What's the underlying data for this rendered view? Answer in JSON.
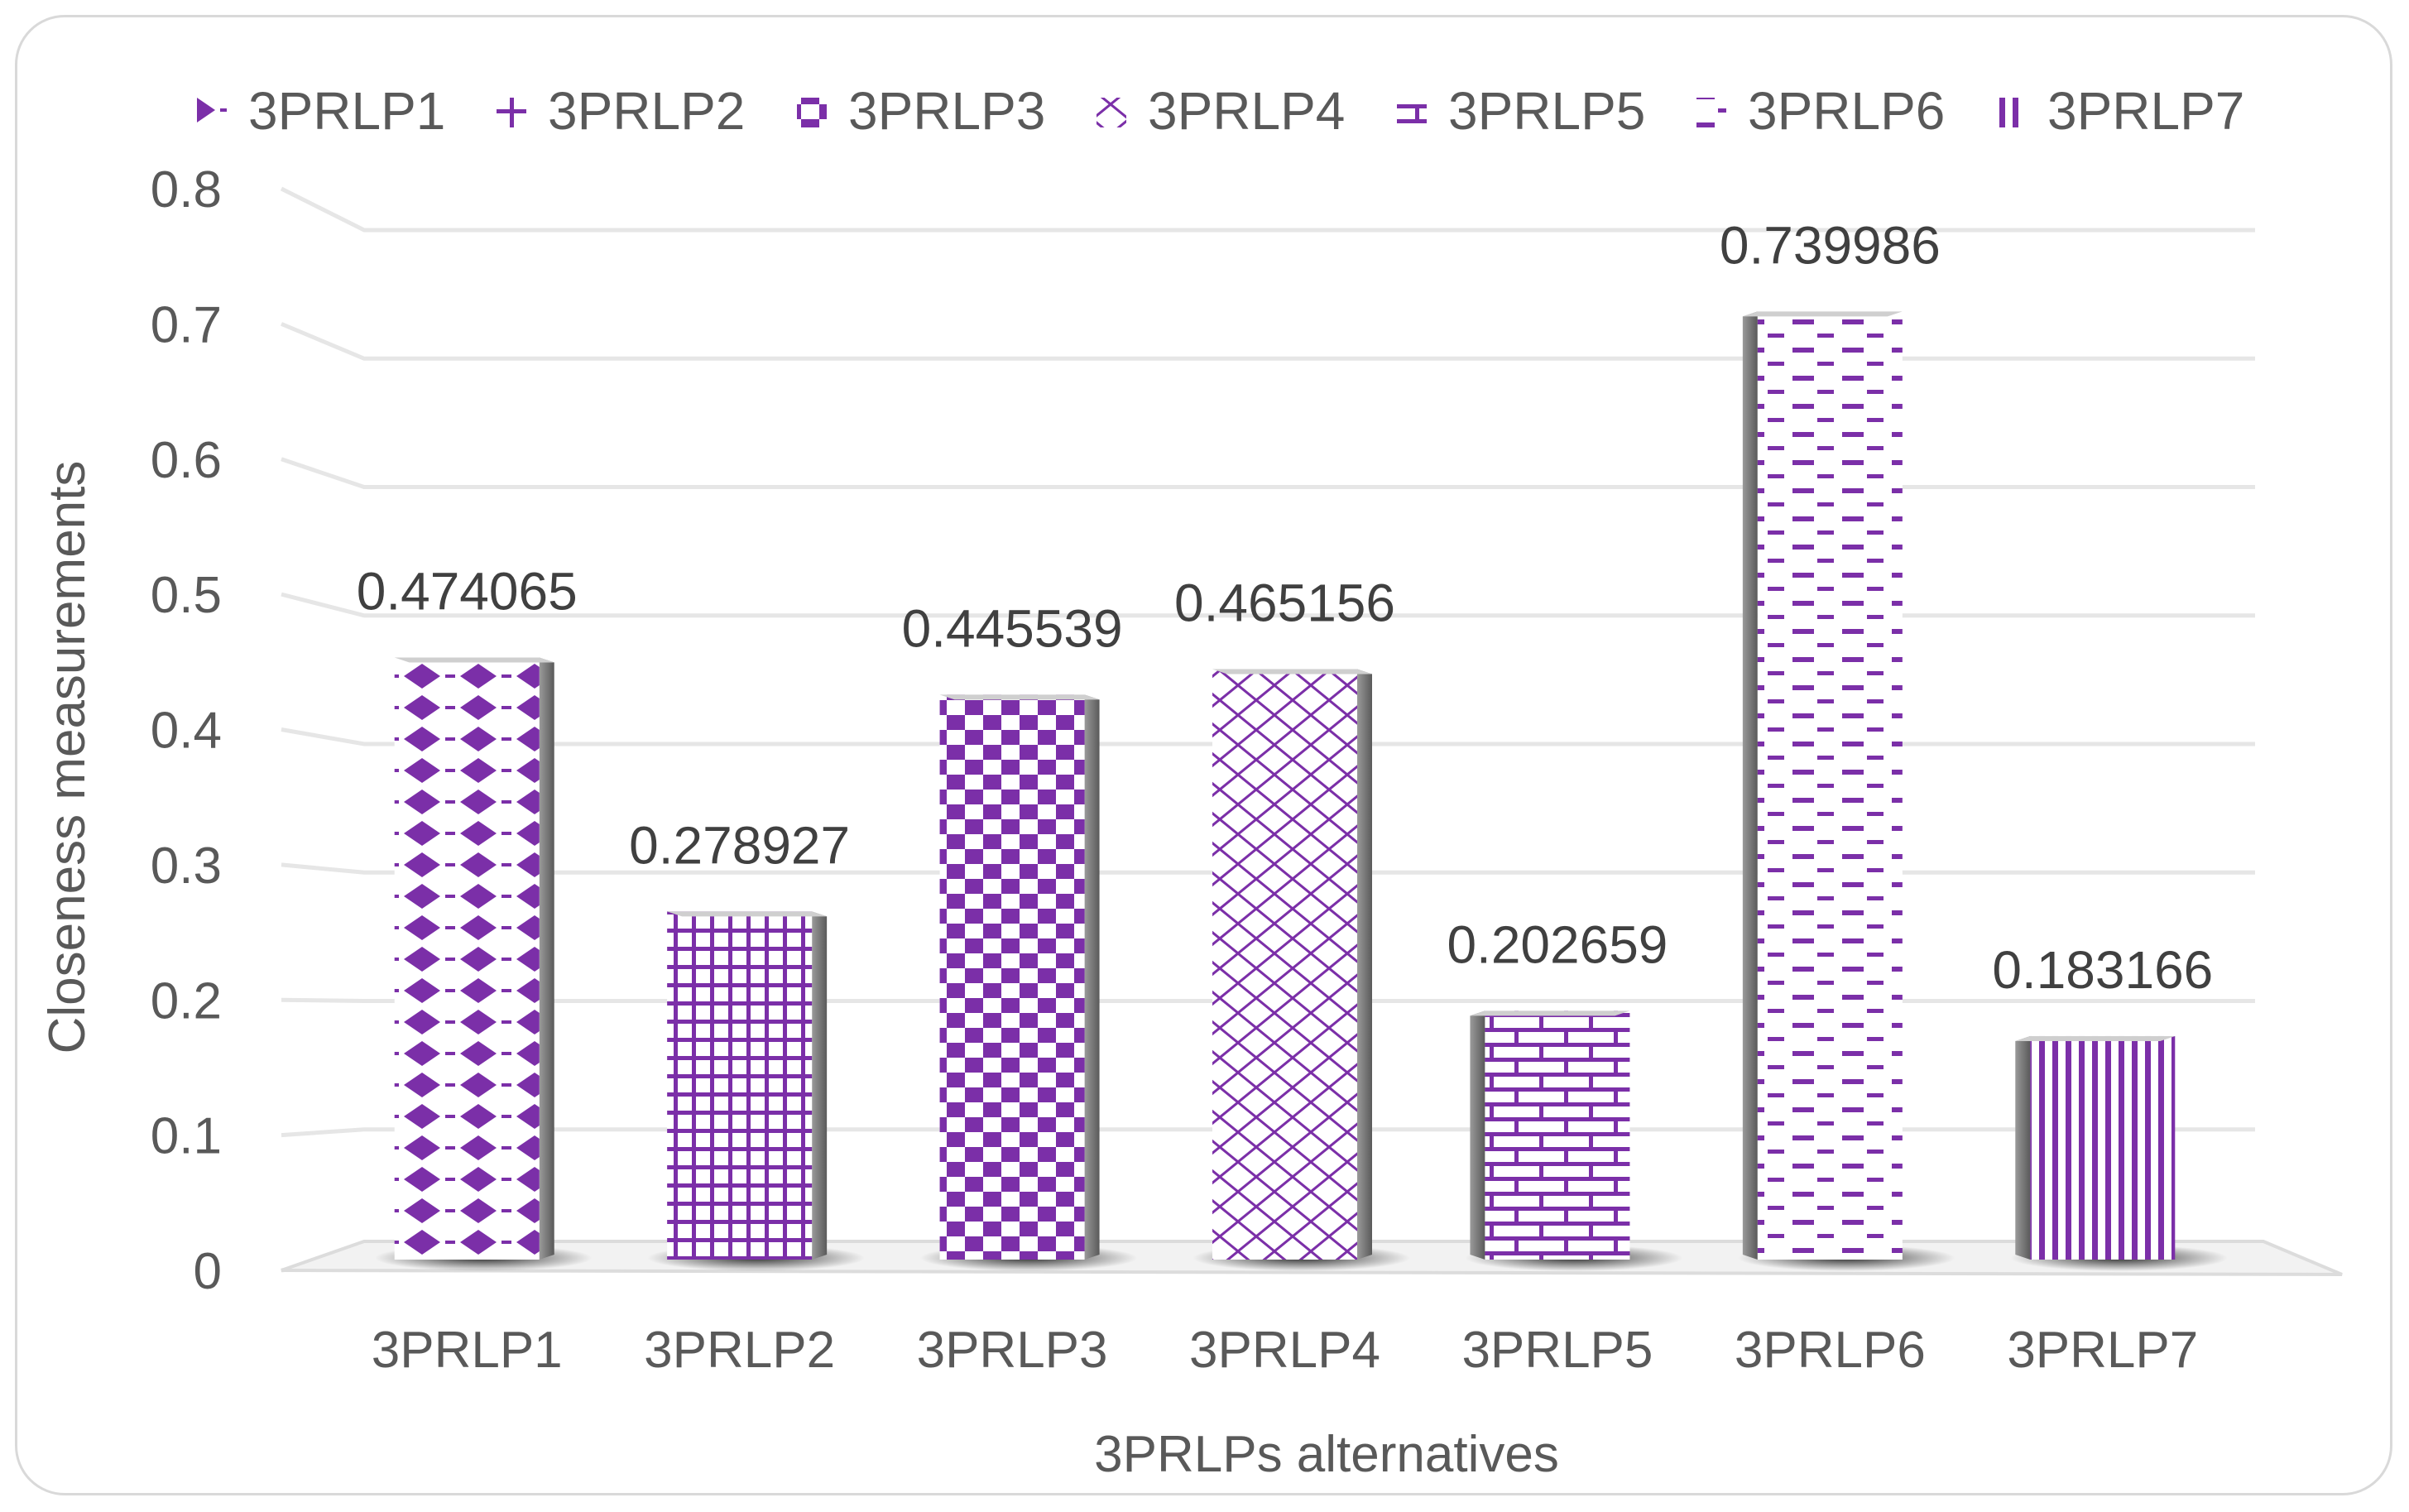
{
  "chart_data": {
    "type": "bar",
    "title": "",
    "xlabel": "3PRLPs alternatives",
    "ylabel": "Closeness measurements",
    "ylim": [
      0,
      0.8
    ],
    "yticks": [
      "0",
      "0.1",
      "0.2",
      "0.3",
      "0.4",
      "0.5",
      "0.6",
      "0.7",
      "0.8"
    ],
    "categories": [
      "3PRLP1",
      "3PRLP2",
      "3PRLP3",
      "3PRLP4",
      "3PRLP5",
      "3PRLP6",
      "3PRLP7"
    ],
    "values": [
      0.474065,
      0.278927,
      0.445539,
      0.465156,
      0.202659,
      0.739986,
      0.183166
    ],
    "data_labels": [
      "0.474065",
      "0.278927",
      "0.445539",
      "0.465156",
      "0.202659",
      "0.739986",
      "0.183166"
    ],
    "legend": [
      "3PRLP1",
      "3PRLP2",
      "3PRLP3",
      "3PRLP4",
      "3PRLP5",
      "3PRLP6",
      "3PRLP7"
    ],
    "legend_position": "top",
    "grid": true,
    "color": "#7B2FA8",
    "patterns": [
      "diamond",
      "grid",
      "checker",
      "cross-hatch",
      "brick",
      "dash",
      "vertical-stripes"
    ]
  }
}
